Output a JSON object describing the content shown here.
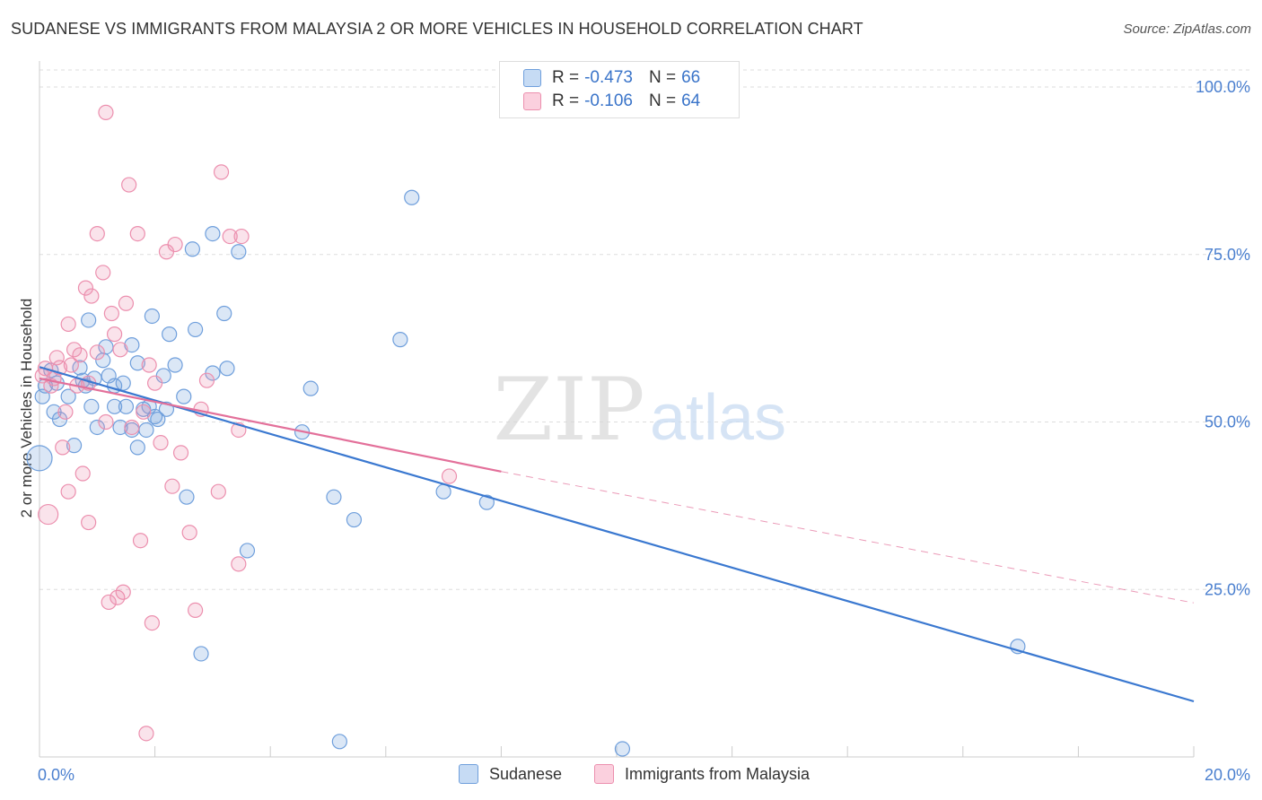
{
  "title": "SUDANESE VS IMMIGRANTS FROM MALAYSIA 2 OR MORE VEHICLES IN HOUSEHOLD CORRELATION CHART",
  "source": "Source: ZipAtlas.com",
  "watermark": {
    "zip": "ZIP",
    "atlas": "atlas"
  },
  "legend_top": {
    "rows": [
      {
        "r_label": "R =",
        "r_value": "-0.473",
        "n_label": "N =",
        "n_value": "66",
        "color": "#6f9fdc"
      },
      {
        "r_label": "R =",
        "r_value": "-0.106",
        "n_label": "N =",
        "n_value": "64",
        "color": "#ec8fae"
      }
    ]
  },
  "chart_data": {
    "type": "scatter",
    "title": "SUDANESE VS IMMIGRANTS FROM MALAYSIA 2 OR MORE VEHICLES IN HOUSEHOLD CORRELATION CHART",
    "xlabel": "",
    "ylabel": "2 or more Vehicles in Household",
    "xlim": [
      0,
      20
    ],
    "ylim": [
      0,
      100
    ],
    "x_tick_labels": [
      "0.0%",
      "20.0%"
    ],
    "y_tick_labels": [
      "100.0%",
      "75.0%",
      "50.0%",
      "25.0%"
    ],
    "y_tick_values": [
      100,
      75,
      50,
      25
    ],
    "grid": true,
    "series": [
      {
        "name": "Sudanese",
        "color": "#6f9fdc",
        "fill": "rgba(111,159,220,0.25)",
        "trend": {
          "x": [
            0,
            20
          ],
          "y": [
            58.2,
            8.3
          ],
          "dashed_from": null
        },
        "points": [
          {
            "x": 0.0,
            "y": 44.6,
            "r": 14
          },
          {
            "x": 0.05,
            "y": 53.8
          },
          {
            "x": 0.1,
            "y": 55.4
          },
          {
            "x": 0.2,
            "y": 57.7
          },
          {
            "x": 0.25,
            "y": 51.5
          },
          {
            "x": 0.3,
            "y": 55.8
          },
          {
            "x": 0.35,
            "y": 50.4
          },
          {
            "x": 0.5,
            "y": 53.8
          },
          {
            "x": 0.6,
            "y": 46.5
          },
          {
            "x": 0.7,
            "y": 58.1
          },
          {
            "x": 0.75,
            "y": 56.2
          },
          {
            "x": 0.8,
            "y": 55.4
          },
          {
            "x": 0.85,
            "y": 65.2
          },
          {
            "x": 0.9,
            "y": 52.3
          },
          {
            "x": 0.95,
            "y": 56.5
          },
          {
            "x": 1.0,
            "y": 49.2
          },
          {
            "x": 1.1,
            "y": 59.2
          },
          {
            "x": 1.15,
            "y": 61.2
          },
          {
            "x": 1.2,
            "y": 56.9
          },
          {
            "x": 1.3,
            "y": 55.4
          },
          {
            "x": 1.3,
            "y": 52.3
          },
          {
            "x": 1.4,
            "y": 49.2
          },
          {
            "x": 1.45,
            "y": 55.8
          },
          {
            "x": 1.5,
            "y": 52.3
          },
          {
            "x": 1.6,
            "y": 48.8
          },
          {
            "x": 1.6,
            "y": 61.5
          },
          {
            "x": 1.7,
            "y": 46.2
          },
          {
            "x": 1.7,
            "y": 58.8
          },
          {
            "x": 1.8,
            "y": 51.9
          },
          {
            "x": 1.85,
            "y": 48.8
          },
          {
            "x": 1.9,
            "y": 52.3
          },
          {
            "x": 1.95,
            "y": 65.8
          },
          {
            "x": 2.0,
            "y": 50.8
          },
          {
            "x": 2.05,
            "y": 50.4
          },
          {
            "x": 2.15,
            "y": 56.9
          },
          {
            "x": 2.2,
            "y": 51.9
          },
          {
            "x": 2.25,
            "y": 63.1
          },
          {
            "x": 2.35,
            "y": 58.5
          },
          {
            "x": 2.5,
            "y": 53.8
          },
          {
            "x": 2.55,
            "y": 38.8
          },
          {
            "x": 2.65,
            "y": 75.8
          },
          {
            "x": 2.7,
            "y": 63.8
          },
          {
            "x": 2.8,
            "y": 15.4
          },
          {
            "x": 3.0,
            "y": 57.3
          },
          {
            "x": 3.0,
            "y": 78.1
          },
          {
            "x": 3.2,
            "y": 66.2
          },
          {
            "x": 3.25,
            "y": 58.0
          },
          {
            "x": 3.45,
            "y": 75.4
          },
          {
            "x": 3.6,
            "y": 30.8
          },
          {
            "x": 4.55,
            "y": 48.5
          },
          {
            "x": 4.7,
            "y": 55.0
          },
          {
            "x": 5.1,
            "y": 38.8
          },
          {
            "x": 5.2,
            "y": 2.3
          },
          {
            "x": 5.45,
            "y": 35.4
          },
          {
            "x": 6.25,
            "y": 62.3
          },
          {
            "x": 6.45,
            "y": 83.5
          },
          {
            "x": 7.0,
            "y": 39.6
          },
          {
            "x": 7.75,
            "y": 38.0
          },
          {
            "x": 10.1,
            "y": 1.2
          },
          {
            "x": 16.95,
            "y": 16.5
          }
        ]
      },
      {
        "name": "Immigrants from Malaysia",
        "color": "#ec8fae",
        "fill": "rgba(236,143,174,0.25)",
        "trend": {
          "x": [
            0,
            8.0,
            20
          ],
          "y": [
            56.5,
            42.6,
            23.0
          ],
          "dashed_from": 8.0
        },
        "points": [
          {
            "x": 0.05,
            "y": 56.9
          },
          {
            "x": 0.1,
            "y": 58.0
          },
          {
            "x": 0.15,
            "y": 36.2,
            "r": 11
          },
          {
            "x": 0.2,
            "y": 55.4
          },
          {
            "x": 0.25,
            "y": 56.5
          },
          {
            "x": 0.3,
            "y": 59.6
          },
          {
            "x": 0.35,
            "y": 58.1
          },
          {
            "x": 0.4,
            "y": 46.2
          },
          {
            "x": 0.45,
            "y": 51.5
          },
          {
            "x": 0.5,
            "y": 64.6
          },
          {
            "x": 0.5,
            "y": 39.6
          },
          {
            "x": 0.55,
            "y": 58.5
          },
          {
            "x": 0.6,
            "y": 60.8
          },
          {
            "x": 0.65,
            "y": 55.4
          },
          {
            "x": 0.7,
            "y": 60.0
          },
          {
            "x": 0.75,
            "y": 42.3
          },
          {
            "x": 0.8,
            "y": 70.0
          },
          {
            "x": 0.85,
            "y": 55.8
          },
          {
            "x": 0.85,
            "y": 35.0
          },
          {
            "x": 0.9,
            "y": 68.8
          },
          {
            "x": 1.0,
            "y": 60.4
          },
          {
            "x": 1.0,
            "y": 78.1
          },
          {
            "x": 1.1,
            "y": 72.3
          },
          {
            "x": 1.15,
            "y": 50.0
          },
          {
            "x": 1.2,
            "y": 23.1
          },
          {
            "x": 1.25,
            "y": 66.2
          },
          {
            "x": 1.3,
            "y": 63.1
          },
          {
            "x": 1.35,
            "y": 23.8
          },
          {
            "x": 1.4,
            "y": 60.8
          },
          {
            "x": 1.45,
            "y": 24.6
          },
          {
            "x": 1.5,
            "y": 67.7
          },
          {
            "x": 1.55,
            "y": 85.4
          },
          {
            "x": 1.6,
            "y": 49.2
          },
          {
            "x": 1.7,
            "y": 78.1
          },
          {
            "x": 1.75,
            "y": 32.3
          },
          {
            "x": 1.8,
            "y": 51.5
          },
          {
            "x": 1.85,
            "y": 3.5
          },
          {
            "x": 1.9,
            "y": 58.5
          },
          {
            "x": 1.95,
            "y": 20.0
          },
          {
            "x": 2.0,
            "y": 55.8
          },
          {
            "x": 2.1,
            "y": 46.9
          },
          {
            "x": 2.2,
            "y": 75.4
          },
          {
            "x": 2.3,
            "y": 40.4
          },
          {
            "x": 2.35,
            "y": 76.5
          },
          {
            "x": 2.45,
            "y": 45.4
          },
          {
            "x": 2.6,
            "y": 33.5
          },
          {
            "x": 2.7,
            "y": 21.9
          },
          {
            "x": 2.8,
            "y": 51.9
          },
          {
            "x": 2.9,
            "y": 56.2
          },
          {
            "x": 3.1,
            "y": 39.6
          },
          {
            "x": 3.15,
            "y": 87.3
          },
          {
            "x": 3.3,
            "y": 77.7
          },
          {
            "x": 3.45,
            "y": 28.8
          },
          {
            "x": 3.45,
            "y": 48.8
          },
          {
            "x": 3.5,
            "y": 77.7
          },
          {
            "x": 7.1,
            "y": 41.9
          },
          {
            "x": 1.15,
            "y": 96.2
          }
        ]
      }
    ]
  },
  "bottom_legend": [
    {
      "label": "Sudanese",
      "color": "#6f9fdc"
    },
    {
      "label": "Immigrants from Malaysia",
      "color": "#ec8fae"
    }
  ]
}
